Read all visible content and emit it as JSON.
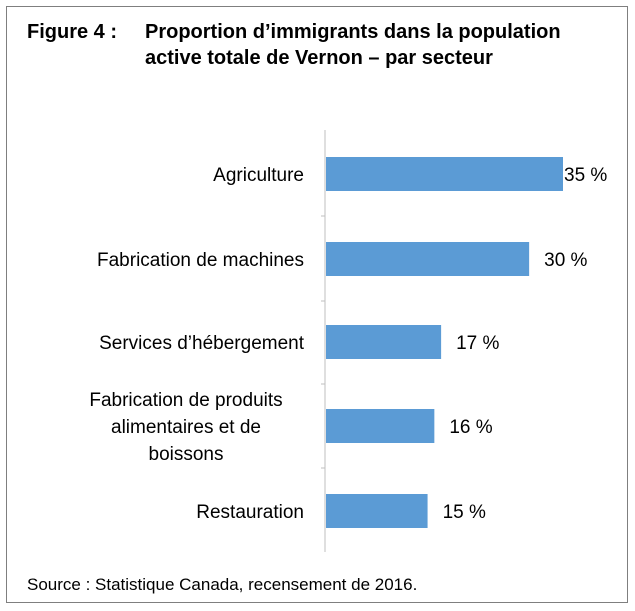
{
  "figure": {
    "label": "Figure 4 :",
    "title": "Proportion d’immigrants dans la population active totale de Vernon – par secteur"
  },
  "source": "Source : Statistique Canada, recensement de 2016.",
  "chart_data": {
    "type": "bar",
    "orientation": "horizontal",
    "title": "Figure 4 : Proportion d’immigrants dans la population active totale de Vernon – par secteur",
    "categories": [
      "Agriculture",
      "Fabrication de machines",
      "Services d’hébergement",
      "Fabrication de produits alimentaires et de boissons",
      "Restauration"
    ],
    "category_lines": [
      [
        "Agriculture"
      ],
      [
        "Fabrication de machines"
      ],
      [
        "Services d’hébergement"
      ],
      [
        "Fabrication de produits",
        "alimentaires et de",
        "boissons"
      ],
      [
        "Restauration"
      ]
    ],
    "values": [
      35,
      30,
      17,
      16,
      15
    ],
    "value_labels": [
      "35 %",
      "30 %",
      "17 %",
      "16 %",
      "15 %"
    ],
    "unit": "%",
    "xlim": [
      0,
      35
    ],
    "bar_color": "#5b9bd5",
    "grid": false,
    "legend": "none"
  }
}
